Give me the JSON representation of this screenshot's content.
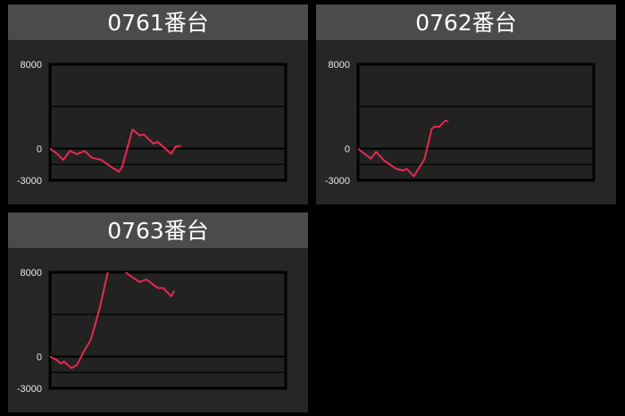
{
  "colors": {
    "line": "#e8294f",
    "header": "#4b4b4b",
    "panel": "#262626",
    "plot": "#222222",
    "grid": "#000000"
  },
  "chart_data": [
    {
      "type": "line",
      "title": "0761番台",
      "ylim": [
        -3000,
        8000
      ],
      "yticks": [
        "8000",
        "0",
        "-3000"
      ],
      "gridlines": [
        4000,
        0,
        -1500
      ],
      "xlim": [
        0,
        100
      ],
      "x": [
        0,
        2.8,
        5.6,
        8.5,
        11.4,
        14.7,
        17.7,
        21.7,
        26.8,
        29.3,
        30.6,
        35,
        38.1,
        39.8,
        43.8,
        45.7,
        51.4,
        53.3,
        55.5
      ],
      "values": [
        0,
        -440,
        -1060,
        -210,
        -520,
        -210,
        -860,
        -1060,
        -1850,
        -2190,
        -1710,
        1820,
        1250,
        1340,
        490,
        640,
        -490,
        190,
        270
      ]
    },
    {
      "type": "line",
      "title": "0762番台",
      "ylim": [
        -3000,
        8000
      ],
      "yticks": [
        "8000",
        "0",
        "-3000"
      ],
      "gridlines": [
        4000,
        0,
        -1500
      ],
      "xlim": [
        0,
        100
      ],
      "x": [
        0,
        5.4,
        7.6,
        11.1,
        16.2,
        19.1,
        20.6,
        23.7,
        28.2,
        31.3,
        32.6,
        34.5,
        37,
        38.3
      ],
      "values": [
        0,
        -940,
        -300,
        -1140,
        -1910,
        -2080,
        -1910,
        -2610,
        -1000,
        1910,
        2100,
        2080,
        2670,
        2580
      ]
    },
    {
      "type": "line",
      "title": "0763番台",
      "ylim": [
        -3000,
        8000
      ],
      "yticks": [
        "8000",
        "0",
        "-3000"
      ],
      "gridlines": [
        4000,
        0,
        -1500
      ],
      "xlim": [
        0,
        100
      ],
      "x": [
        0,
        2.8,
        4.7,
        5.9,
        9.1,
        11.4,
        14.1,
        17.3,
        21.1,
        24.5,
        28.3,
        32.1,
        34.3,
        38.1,
        40.9,
        45.7,
        48,
        51.4,
        52.7
      ],
      "values": [
        0,
        -310,
        -670,
        -450,
        -1090,
        -790,
        390,
        1600,
        4600,
        8000,
        9500,
        8000,
        7630,
        7070,
        7320,
        6510,
        6510,
        5720,
        6230
      ]
    }
  ]
}
